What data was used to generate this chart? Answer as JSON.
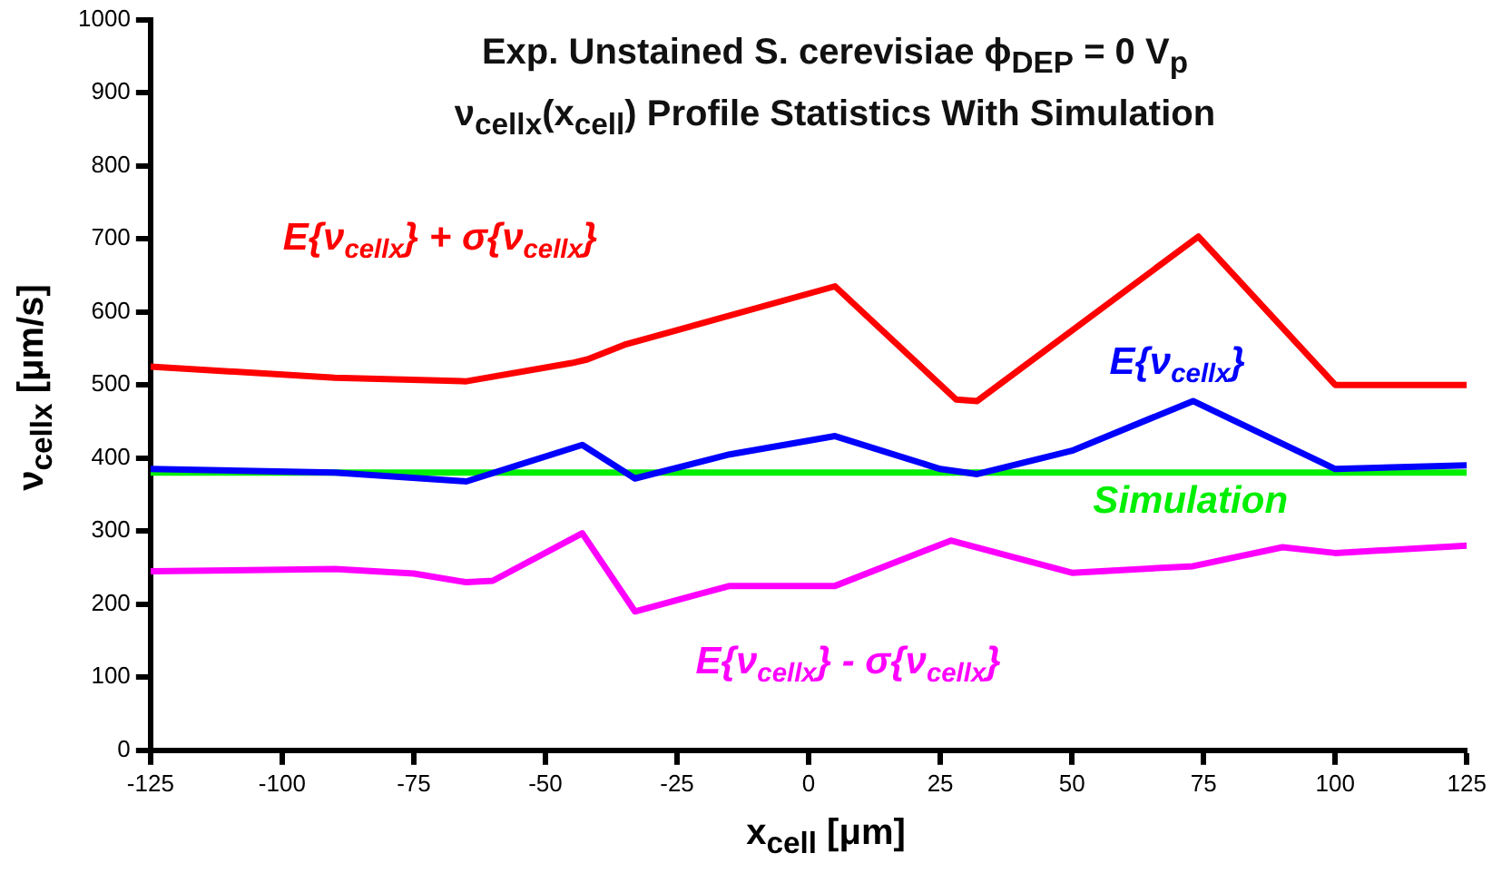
{
  "chart_data": {
    "type": "line",
    "title": "Exp. Unstained S. cerevisiae ϕ$_{DEP}$ = 0 V$_{p}$",
    "subtitle": "ν$_{cellx}$(x$_{cell}$) Profile Statistics With Simulation",
    "xlabel": "x$_{cell}$ [μm]",
    "ylabel": "ν$_{cellx}$ [μm/s]",
    "xlim": [
      -125,
      125
    ],
    "xticks": [
      -125,
      -100,
      -75,
      -50,
      -25,
      0,
      25,
      50,
      75,
      100,
      125
    ],
    "ylim": [
      0,
      1000
    ],
    "yticks": [
      0,
      100,
      200,
      300,
      400,
      500,
      600,
      700,
      800,
      900,
      1000
    ],
    "grid": false,
    "legend": false,
    "marker": "none",
    "line_style": "solid",
    "series": [
      {
        "name": "E{ν$_{cellx}$} + σ{ν$_{cellx}$}",
        "color": "#ff0000",
        "x": [
          -125,
          -90,
          -65,
          -45,
          -42,
          -35,
          5,
          28,
          32,
          74,
          100,
          125
        ],
        "values": [
          525,
          510,
          505,
          530,
          535,
          555,
          635,
          480,
          478,
          703,
          500,
          500
        ]
      },
      {
        "name": "E{ν$_{cellx}$}",
        "color": "#0000ff",
        "x": [
          -125,
          -90,
          -65,
          -43,
          -33,
          -15,
          5,
          25,
          32,
          50,
          73,
          100,
          125
        ],
        "values": [
          385,
          380,
          368,
          418,
          372,
          405,
          430,
          385,
          378,
          410,
          478,
          385,
          390
        ]
      },
      {
        "name": "Simulation",
        "color": "#00ee00",
        "x": [
          -125,
          125
        ],
        "values": [
          380,
          380
        ]
      },
      {
        "name": "E{ν$_{cellx}$} - σ{ν$_{cellx}$}",
        "color": "#ff00ff",
        "x": [
          -125,
          -90,
          -75,
          -65,
          -60,
          -43,
          -33,
          -15,
          5,
          27,
          50,
          73,
          90,
          100,
          125
        ],
        "values": [
          245,
          248,
          242,
          230,
          232,
          297,
          190,
          225,
          225,
          287,
          243,
          252,
          278,
          270,
          280
        ]
      }
    ]
  }
}
